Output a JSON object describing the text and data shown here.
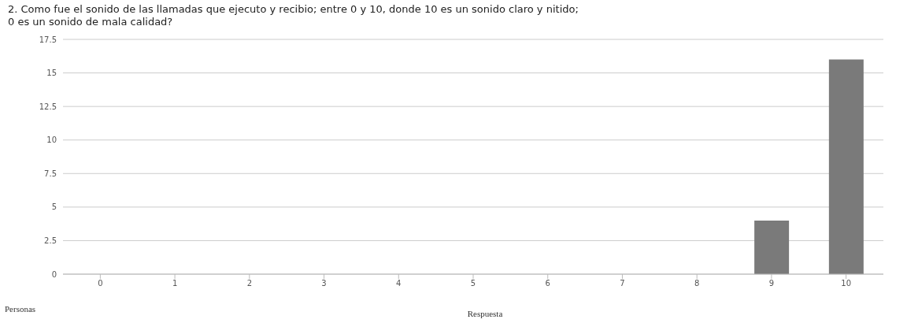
{
  "chart_data": {
    "type": "bar",
    "title": "2. Como fue el sonido de las llamadas que ejecuto y recibio; entre 0 y 10, donde 10 es un sonido claro y nitido;\n0 es un sonido de mala calidad?",
    "xlabel": "Respuesta",
    "ylabel": "Personas",
    "categories": [
      "0",
      "1",
      "2",
      "3",
      "4",
      "5",
      "6",
      "7",
      "8",
      "9",
      "10"
    ],
    "values": [
      0,
      0,
      0,
      0,
      0,
      0,
      0,
      0,
      0,
      4,
      16
    ],
    "color": "#7a7a7a",
    "ylim": [
      0,
      17.5
    ],
    "yticks": [
      0,
      2.5,
      5,
      7.5,
      10,
      12.5,
      15,
      17.5
    ],
    "grid": "y"
  }
}
